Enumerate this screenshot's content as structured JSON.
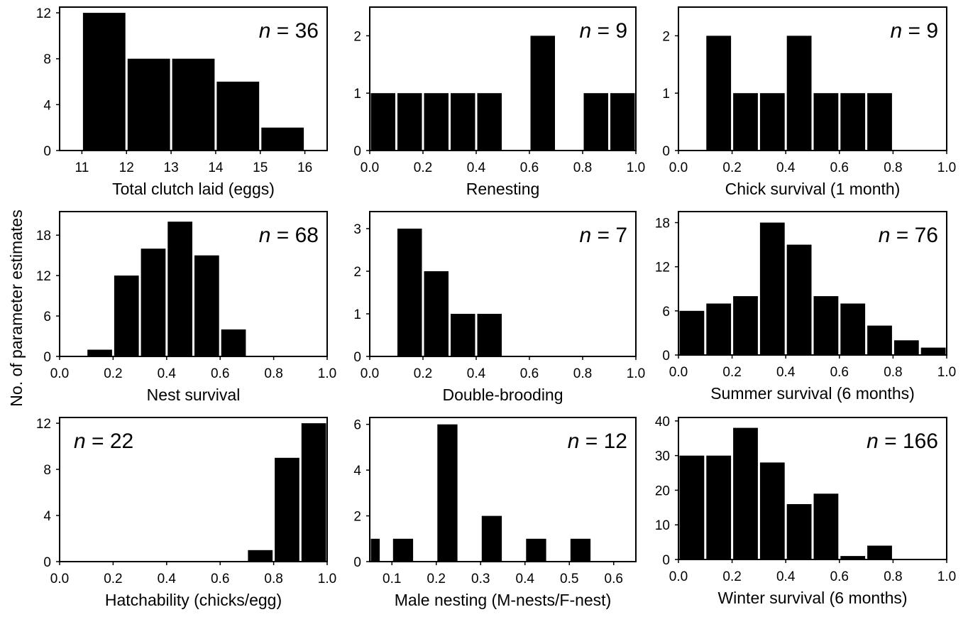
{
  "figure": {
    "ylabel": "No. of parameter estimates"
  },
  "chart_data": [
    {
      "type": "bar",
      "xlabel": "Total clutch laid (eggs)",
      "n_label": "36",
      "xlim": [
        10.5,
        16.5
      ],
      "xticks": [
        11,
        12,
        13,
        14,
        15,
        16
      ],
      "xtick_labels": [
        "11",
        "12",
        "13",
        "14",
        "15",
        "16"
      ],
      "ylim": [
        0,
        12.5
      ],
      "yticks": [
        0,
        4,
        8,
        12
      ],
      "ytick_labels": [
        "0",
        "4",
        "8",
        "12"
      ],
      "n_position": "top-right",
      "bins": [
        {
          "x0": 11,
          "x1": 12,
          "y": 12
        },
        {
          "x0": 12,
          "x1": 13,
          "y": 8
        },
        {
          "x0": 13,
          "x1": 14,
          "y": 8
        },
        {
          "x0": 14,
          "x1": 15,
          "y": 6
        },
        {
          "x0": 15,
          "x1": 16,
          "y": 2
        }
      ]
    },
    {
      "type": "bar",
      "xlabel": "Renesting",
      "n_label": "9",
      "xlim": [
        0,
        1
      ],
      "xticks": [
        0,
        0.2,
        0.4,
        0.6,
        0.8,
        1.0
      ],
      "xtick_labels": [
        "0.0",
        "0.2",
        "0.4",
        "0.6",
        "0.8",
        "1.0"
      ],
      "ylim": [
        0,
        2.5
      ],
      "yticks": [
        0,
        1,
        2
      ],
      "ytick_labels": [
        "0",
        "1",
        "2"
      ],
      "n_position": "top-right",
      "bins": [
        {
          "x0": 0.0,
          "x1": 0.1,
          "y": 1
        },
        {
          "x0": 0.1,
          "x1": 0.2,
          "y": 1
        },
        {
          "x0": 0.2,
          "x1": 0.3,
          "y": 1
        },
        {
          "x0": 0.3,
          "x1": 0.4,
          "y": 1
        },
        {
          "x0": 0.4,
          "x1": 0.5,
          "y": 1
        },
        {
          "x0": 0.6,
          "x1": 0.7,
          "y": 2
        },
        {
          "x0": 0.8,
          "x1": 0.9,
          "y": 1
        },
        {
          "x0": 0.9,
          "x1": 1.0,
          "y": 1
        }
      ]
    },
    {
      "type": "bar",
      "xlabel": "Chick survival (1 month)",
      "n_label": "9",
      "xlim": [
        0,
        1
      ],
      "xticks": [
        0,
        0.2,
        0.4,
        0.6,
        0.8,
        1.0
      ],
      "xtick_labels": [
        "0.0",
        "0.2",
        "0.4",
        "0.6",
        "0.8",
        "1.0"
      ],
      "ylim": [
        0,
        2.5
      ],
      "yticks": [
        0,
        1,
        2
      ],
      "ytick_labels": [
        "0",
        "1",
        "2"
      ],
      "n_position": "top-right",
      "bins": [
        {
          "x0": 0.1,
          "x1": 0.2,
          "y": 2
        },
        {
          "x0": 0.2,
          "x1": 0.3,
          "y": 1
        },
        {
          "x0": 0.3,
          "x1": 0.4,
          "y": 1
        },
        {
          "x0": 0.4,
          "x1": 0.5,
          "y": 2
        },
        {
          "x0": 0.5,
          "x1": 0.6,
          "y": 1
        },
        {
          "x0": 0.6,
          "x1": 0.7,
          "y": 1
        },
        {
          "x0": 0.7,
          "x1": 0.8,
          "y": 1
        }
      ]
    },
    {
      "type": "bar",
      "xlabel": "Nest survival",
      "n_label": "68",
      "xlim": [
        0,
        1
      ],
      "xticks": [
        0,
        0.2,
        0.4,
        0.6,
        0.8,
        1.0
      ],
      "xtick_labels": [
        "0.0",
        "0.2",
        "0.4",
        "0.6",
        "0.8",
        "1.0"
      ],
      "ylim": [
        0,
        21.5
      ],
      "yticks": [
        0,
        6,
        12,
        18
      ],
      "ytick_labels": [
        "0",
        "6",
        "12",
        "18"
      ],
      "n_position": "top-right",
      "bins": [
        {
          "x0": 0.1,
          "x1": 0.2,
          "y": 1
        },
        {
          "x0": 0.2,
          "x1": 0.3,
          "y": 12
        },
        {
          "x0": 0.3,
          "x1": 0.4,
          "y": 16
        },
        {
          "x0": 0.4,
          "x1": 0.5,
          "y": 20
        },
        {
          "x0": 0.5,
          "x1": 0.6,
          "y": 15
        },
        {
          "x0": 0.6,
          "x1": 0.7,
          "y": 4
        }
      ]
    },
    {
      "type": "bar",
      "xlabel": "Double-brooding",
      "n_label": "7",
      "xlim": [
        0,
        1
      ],
      "xticks": [
        0,
        0.2,
        0.4,
        0.6,
        0.8,
        1.0
      ],
      "xtick_labels": [
        "0.0",
        "0.2",
        "0.4",
        "0.6",
        "0.8",
        "1.0"
      ],
      "ylim": [
        0,
        3.4
      ],
      "yticks": [
        0,
        1,
        2,
        3
      ],
      "ytick_labels": [
        "0",
        "1",
        "2",
        "3"
      ],
      "n_position": "top-right",
      "bins": [
        {
          "x0": 0.1,
          "x1": 0.2,
          "y": 3
        },
        {
          "x0": 0.2,
          "x1": 0.3,
          "y": 2
        },
        {
          "x0": 0.3,
          "x1": 0.4,
          "y": 1
        },
        {
          "x0": 0.4,
          "x1": 0.5,
          "y": 1
        }
      ]
    },
    {
      "type": "bar",
      "xlabel": "Summer survival (6 months)",
      "n_label": "76",
      "xlim": [
        0,
        1
      ],
      "xticks": [
        0,
        0.2,
        0.4,
        0.6,
        0.8,
        1.0
      ],
      "xtick_labels": [
        "0.0",
        "0.2",
        "0.4",
        "0.6",
        "0.8",
        "1.0"
      ],
      "ylim": [
        0,
        19.5
      ],
      "yticks": [
        0,
        6,
        12,
        18
      ],
      "ytick_labels": [
        "0",
        "6",
        "12",
        "18"
      ],
      "n_position": "top-right",
      "bins": [
        {
          "x0": 0.0,
          "x1": 0.1,
          "y": 6
        },
        {
          "x0": 0.1,
          "x1": 0.2,
          "y": 7
        },
        {
          "x0": 0.2,
          "x1": 0.3,
          "y": 8
        },
        {
          "x0": 0.3,
          "x1": 0.4,
          "y": 18
        },
        {
          "x0": 0.4,
          "x1": 0.5,
          "y": 15
        },
        {
          "x0": 0.5,
          "x1": 0.6,
          "y": 8
        },
        {
          "x0": 0.6,
          "x1": 0.7,
          "y": 7
        },
        {
          "x0": 0.7,
          "x1": 0.8,
          "y": 4
        },
        {
          "x0": 0.8,
          "x1": 0.9,
          "y": 2
        },
        {
          "x0": 0.9,
          "x1": 1.0,
          "y": 1
        }
      ]
    },
    {
      "type": "bar",
      "xlabel": "Hatchability (chicks/egg)",
      "n_label": "22",
      "xlim": [
        0,
        1
      ],
      "xticks": [
        0,
        0.2,
        0.4,
        0.6,
        0.8,
        1.0
      ],
      "xtick_labels": [
        "0.0",
        "0.2",
        "0.4",
        "0.6",
        "0.8",
        "1.0"
      ],
      "ylim": [
        0,
        12.5
      ],
      "yticks": [
        0,
        4,
        8,
        12
      ],
      "ytick_labels": [
        "0",
        "4",
        "8",
        "12"
      ],
      "n_position": "top-left",
      "bins": [
        {
          "x0": 0.7,
          "x1": 0.8,
          "y": 1
        },
        {
          "x0": 0.8,
          "x1": 0.9,
          "y": 9
        },
        {
          "x0": 0.9,
          "x1": 1.0,
          "y": 12
        }
      ]
    },
    {
      "type": "bar",
      "xlabel": "Male nesting (M-nests/F-nest)",
      "n_label": "12",
      "xlim": [
        0.05,
        0.65
      ],
      "xticks": [
        0.1,
        0.2,
        0.3,
        0.4,
        0.5,
        0.6
      ],
      "xtick_labels": [
        "0.1",
        "0.2",
        "0.3",
        "0.4",
        "0.5",
        "0.6"
      ],
      "ylim": [
        0,
        6.3
      ],
      "yticks": [
        0,
        2,
        4,
        6
      ],
      "ytick_labels": [
        "0",
        "2",
        "4",
        "6"
      ],
      "n_position": "top-right",
      "bins": [
        {
          "x0": 0.05,
          "x1": 0.075,
          "y": 1
        },
        {
          "x0": 0.1,
          "x1": 0.15,
          "y": 1
        },
        {
          "x0": 0.2,
          "x1": 0.25,
          "y": 6
        },
        {
          "x0": 0.3,
          "x1": 0.35,
          "y": 2
        },
        {
          "x0": 0.4,
          "x1": 0.45,
          "y": 1
        },
        {
          "x0": 0.5,
          "x1": 0.55,
          "y": 1
        }
      ]
    },
    {
      "type": "bar",
      "xlabel": "Winter survival (6 months)",
      "n_label": "166",
      "xlim": [
        0,
        1
      ],
      "xticks": [
        0,
        0.2,
        0.4,
        0.6,
        0.8,
        1.0
      ],
      "xtick_labels": [
        "0.0",
        "0.2",
        "0.4",
        "0.6",
        "0.8",
        "1.0"
      ],
      "ylim": [
        0,
        41
      ],
      "yticks": [
        0,
        10,
        20,
        30,
        40
      ],
      "ytick_labels": [
        "0",
        "10",
        "20",
        "30",
        "40"
      ],
      "n_position": "top-right",
      "bins": [
        {
          "x0": 0.0,
          "x1": 0.1,
          "y": 30
        },
        {
          "x0": 0.1,
          "x1": 0.2,
          "y": 30
        },
        {
          "x0": 0.2,
          "x1": 0.3,
          "y": 38
        },
        {
          "x0": 0.3,
          "x1": 0.4,
          "y": 28
        },
        {
          "x0": 0.4,
          "x1": 0.5,
          "y": 16
        },
        {
          "x0": 0.5,
          "x1": 0.6,
          "y": 19
        },
        {
          "x0": 0.6,
          "x1": 0.7,
          "y": 1
        },
        {
          "x0": 0.7,
          "x1": 0.8,
          "y": 4
        }
      ]
    }
  ]
}
